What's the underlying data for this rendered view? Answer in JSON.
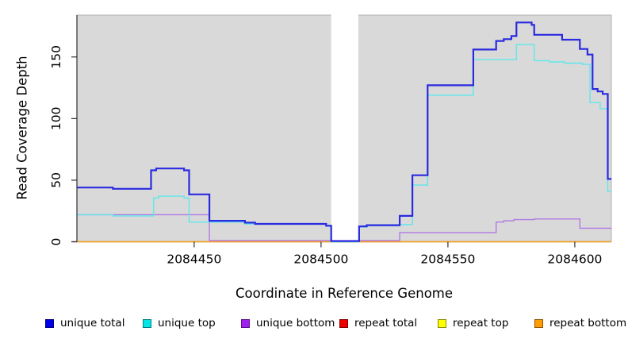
{
  "figure": {
    "kind": "read coverage step plot"
  },
  "chart_data": {
    "type": "line",
    "step": true,
    "title": "",
    "xlabel": "Coordinate in Reference Genome",
    "ylabel": "Read Coverage Depth",
    "xlim": [
      2084403.8,
      2084614.4
    ],
    "ylim": [
      0,
      184
    ],
    "x_ticks": [
      2084450,
      2084500,
      2084550,
      2084600
    ],
    "y_ticks": [
      0,
      50,
      100,
      150
    ],
    "grid": false,
    "panel_bg": "#d9d9d9",
    "panel_border": "#b3b3b3",
    "axis_color": "#303030",
    "gap_region": {
      "x0": 2084504,
      "x1": 2084514.7,
      "color": "#ffffff"
    },
    "legend_position": "bottom",
    "series": [
      {
        "name": "repeat total",
        "line_color": "#e00000",
        "width": 1.1,
        "points": [
          [
            2084403.8,
            0
          ],
          [
            2084614.4,
            0
          ]
        ]
      },
      {
        "name": "repeat top",
        "line_color": "#f5f500",
        "width": 1.1,
        "points": [
          [
            2084403.8,
            0
          ],
          [
            2084614.4,
            0
          ]
        ]
      },
      {
        "name": "repeat bottom",
        "line_color": "#ffa018",
        "width": 1.6,
        "points": [
          [
            2084403.8,
            0
          ],
          [
            2084614.4,
            0
          ]
        ]
      },
      {
        "name": "unique bottom",
        "line_color": "#b17ae3",
        "width": 1.4,
        "points": [
          [
            2084403.8,
            22
          ],
          [
            2084456,
            1
          ],
          [
            2084531,
            7.5
          ],
          [
            2084569,
            16
          ],
          [
            2084572,
            17
          ],
          [
            2084576,
            18
          ],
          [
            2084584,
            18.5
          ],
          [
            2084602,
            11
          ],
          [
            2084614.4,
            11
          ]
        ]
      },
      {
        "name": "unique top",
        "line_color": "#5fe7ea",
        "width": 1.4,
        "points": [
          [
            2084403.8,
            22
          ],
          [
            2084418,
            21
          ],
          [
            2084434,
            35.5
          ],
          [
            2084436,
            37
          ],
          [
            2084446,
            35.5
          ],
          [
            2084448,
            16
          ],
          [
            2084470,
            14.5
          ],
          [
            2084502,
            12.5
          ],
          [
            2084504,
            0
          ],
          [
            2084515,
            12
          ],
          [
            2084518,
            13
          ],
          [
            2084531,
            14
          ],
          [
            2084536,
            46
          ],
          [
            2084542,
            119
          ],
          [
            2084560,
            148
          ],
          [
            2084577,
            160
          ],
          [
            2084584,
            147
          ],
          [
            2084590,
            146
          ],
          [
            2084596,
            145
          ],
          [
            2084603,
            144
          ],
          [
            2084606,
            113
          ],
          [
            2084610,
            108
          ],
          [
            2084613,
            41
          ],
          [
            2084614.4,
            41
          ]
        ]
      },
      {
        "name": "unique total",
        "line_color": "#2a2ae0",
        "width": 2.2,
        "points": [
          [
            2084403.8,
            44
          ],
          [
            2084418,
            43
          ],
          [
            2084433,
            58
          ],
          [
            2084435,
            59.5
          ],
          [
            2084446,
            58
          ],
          [
            2084448,
            38.5
          ],
          [
            2084456,
            17
          ],
          [
            2084470,
            15.5
          ],
          [
            2084474,
            14.5
          ],
          [
            2084502,
            13
          ],
          [
            2084504,
            0.5
          ],
          [
            2084515,
            12.5
          ],
          [
            2084518,
            13.5
          ],
          [
            2084531,
            21
          ],
          [
            2084536,
            54
          ],
          [
            2084542,
            127
          ],
          [
            2084560,
            156
          ],
          [
            2084569,
            163
          ],
          [
            2084572,
            164.5
          ],
          [
            2084575,
            167
          ],
          [
            2084577,
            178
          ],
          [
            2084583,
            176
          ],
          [
            2084584,
            168
          ],
          [
            2084595,
            164
          ],
          [
            2084602,
            156.5
          ],
          [
            2084605,
            152
          ],
          [
            2084607,
            124
          ],
          [
            2084609,
            122
          ],
          [
            2084611,
            120
          ],
          [
            2084613,
            51
          ],
          [
            2084614.4,
            51
          ]
        ]
      }
    ]
  },
  "legend": {
    "items": [
      {
        "label": "unique total",
        "color": "#0000e8"
      },
      {
        "label": "unique top",
        "color": "#00e5e5"
      },
      {
        "label": "unique bottom",
        "color": "#a020f0"
      },
      {
        "label": "repeat total",
        "color": "#ee0000"
      },
      {
        "label": "repeat top",
        "color": "#ffff00"
      },
      {
        "label": "repeat bottom",
        "color": "#ff9d00"
      }
    ]
  }
}
